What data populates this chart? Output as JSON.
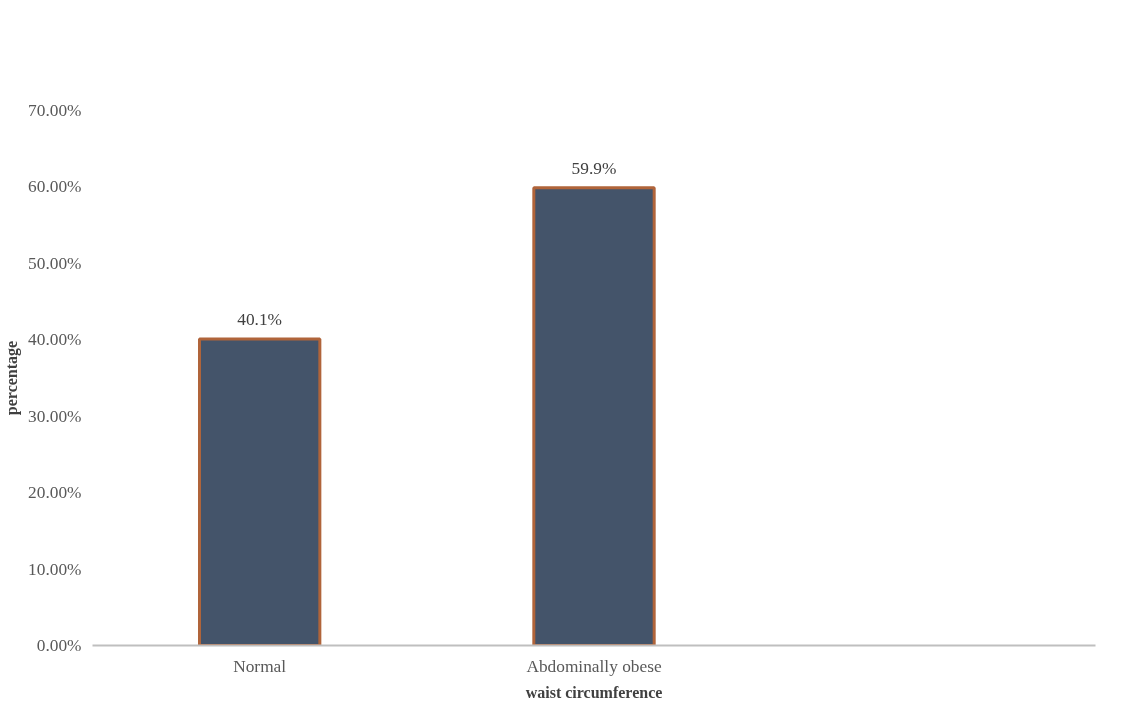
{
  "chart_data": {
    "type": "bar",
    "xlabel": "waist circumference",
    "ylabel": "percentage",
    "categories": [
      "Normal",
      "Abdominally obese",
      null
    ],
    "values": [
      40.1,
      59.9,
      null
    ],
    "value_labels": [
      "40.1%",
      "59.9%",
      null
    ],
    "color": "#44546a",
    "ylim": [
      0,
      70
    ],
    "yticks": [
      {
        "value": 0,
        "label": "0.00%"
      },
      {
        "value": 10,
        "label": "10.00%"
      },
      {
        "value": 20,
        "label": "20.00%"
      },
      {
        "value": 30,
        "label": "30.00%"
      },
      {
        "value": 40,
        "label": "40.00%"
      },
      {
        "value": 50,
        "label": "50.00%"
      },
      {
        "value": 60,
        "label": "60.00%"
      },
      {
        "value": 70,
        "label": "70.00%"
      }
    ],
    "grid": false
  }
}
